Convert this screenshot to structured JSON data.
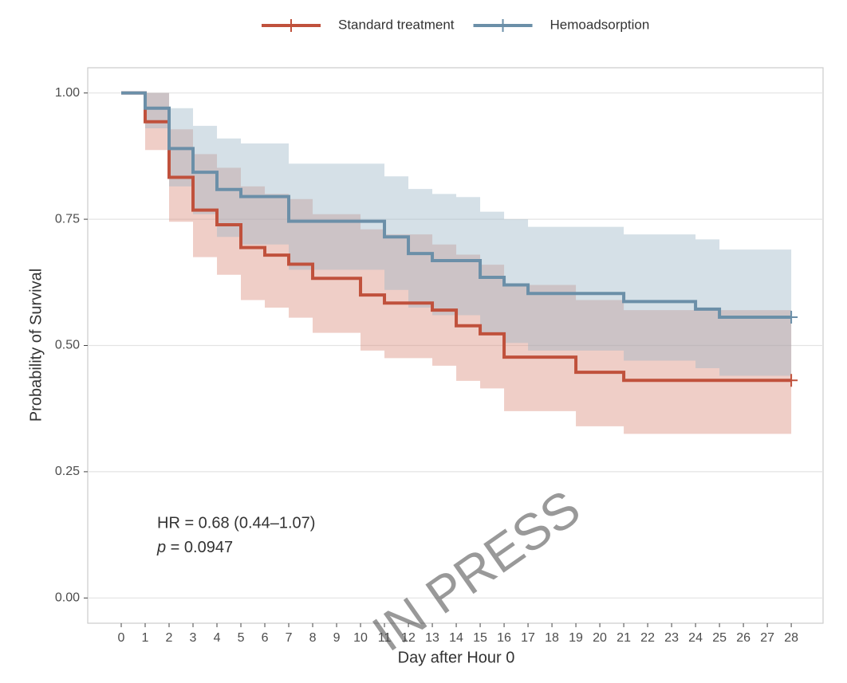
{
  "chart_data": {
    "type": "step",
    "xlabel": "Day after Hour 0",
    "ylabel": "Probability of Survival",
    "xlim": [
      -1.4,
      29.33
    ],
    "ylim": [
      -0.05,
      1.05
    ],
    "xticks": [
      0,
      1,
      2,
      3,
      4,
      5,
      6,
      7,
      8,
      9,
      10,
      11,
      12,
      13,
      14,
      15,
      16,
      17,
      18,
      19,
      20,
      21,
      22,
      23,
      24,
      25,
      26,
      27,
      28
    ],
    "yticks": [
      {
        "value": 0,
        "label": "0.00"
      },
      {
        "value": 0.25,
        "label": "0.25"
      },
      {
        "value": 0.5,
        "label": "0.50"
      },
      {
        "value": 0.75,
        "label": "0.75"
      },
      {
        "value": 1,
        "label": "1.00"
      }
    ],
    "grid": true,
    "legend": "top",
    "x": [
      0,
      1,
      2,
      3,
      4,
      5,
      6,
      7,
      8,
      9,
      10,
      11,
      12,
      13,
      14,
      15,
      16,
      17,
      18,
      19,
      20,
      21,
      22,
      23,
      24,
      25,
      26,
      27,
      28
    ],
    "series": [
      {
        "name": "Standard treatment",
        "color": "#c0513c",
        "band_color": "#d98a7a",
        "values": [
          1.0,
          0.943,
          0.833,
          0.768,
          0.739,
          0.694,
          0.679,
          0.661,
          0.633,
          0.633,
          0.6,
          0.584,
          0.584,
          0.57,
          0.539,
          0.523,
          0.477,
          0.477,
          0.477,
          0.447,
          0.447,
          0.431,
          0.431,
          0.431,
          0.431,
          0.431,
          0.431,
          0.431,
          0.431
        ],
        "upper": [
          1.0,
          1.0,
          0.928,
          0.879,
          0.852,
          0.815,
          0.8,
          0.79,
          0.76,
          0.76,
          0.73,
          0.72,
          0.72,
          0.7,
          0.68,
          0.66,
          0.62,
          0.62,
          0.62,
          0.59,
          0.59,
          0.57,
          0.57,
          0.57,
          0.57,
          0.57,
          0.57,
          0.57,
          0.57
        ],
        "lower": [
          1.0,
          0.887,
          0.745,
          0.675,
          0.64,
          0.59,
          0.575,
          0.555,
          0.525,
          0.525,
          0.49,
          0.475,
          0.475,
          0.46,
          0.43,
          0.415,
          0.37,
          0.37,
          0.37,
          0.34,
          0.34,
          0.325,
          0.325,
          0.325,
          0.325,
          0.325,
          0.325,
          0.325,
          0.325
        ]
      },
      {
        "name": "Hemoadsorption",
        "color": "#6b8fa8",
        "band_color": "#9ab4c6",
        "values": [
          1.0,
          0.97,
          0.89,
          0.843,
          0.809,
          0.795,
          0.795,
          0.746,
          0.746,
          0.746,
          0.746,
          0.715,
          0.682,
          0.668,
          0.668,
          0.635,
          0.62,
          0.603,
          0.603,
          0.603,
          0.603,
          0.587,
          0.587,
          0.587,
          0.572,
          0.556,
          0.556,
          0.556,
          0.556
        ],
        "upper": [
          1.0,
          1.0,
          0.97,
          0.935,
          0.91,
          0.9,
          0.9,
          0.86,
          0.86,
          0.86,
          0.86,
          0.835,
          0.81,
          0.8,
          0.794,
          0.765,
          0.75,
          0.735,
          0.735,
          0.735,
          0.735,
          0.72,
          0.72,
          0.72,
          0.71,
          0.69,
          0.69,
          0.69,
          0.69
        ],
        "lower": [
          1.0,
          0.93,
          0.815,
          0.76,
          0.715,
          0.7,
          0.7,
          0.65,
          0.65,
          0.65,
          0.65,
          0.61,
          0.575,
          0.56,
          0.56,
          0.525,
          0.505,
          0.49,
          0.49,
          0.49,
          0.49,
          0.47,
          0.47,
          0.47,
          0.455,
          0.44,
          0.44,
          0.44,
          0.44
        ]
      }
    ],
    "annotations": [
      "HR = 0.68 (0.44–1.07)",
      {
        "symbol": "p",
        "text": " = 0.0947"
      }
    ],
    "watermark": "IN PRESS"
  }
}
